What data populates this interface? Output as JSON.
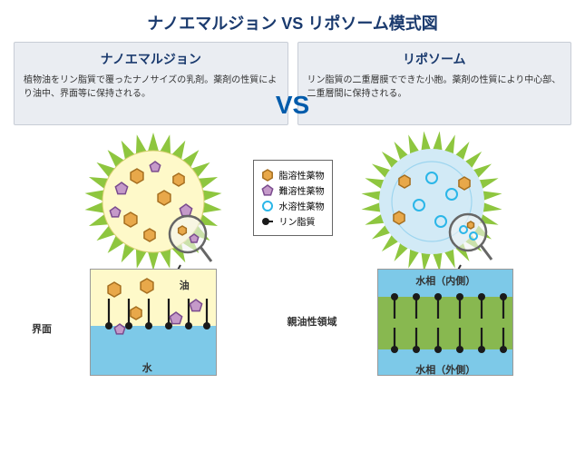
{
  "title": "ナノエマルジョン VS リポソーム模式図",
  "vs_text": "VS",
  "left": {
    "title": "ナノエマルジョン",
    "desc": "植物油をリン脂質で覆ったナノサイズの乳剤。薬剤の性質により油中、界面等に保持される。"
  },
  "right": {
    "title": "リポソーム",
    "desc": "リン脂質の二重層膜でできた小胞。薬剤の性質により中心部、二重層間に保持される。"
  },
  "legend": {
    "fat": "脂溶性薬物",
    "hard": "難溶性薬物",
    "water": "水溶性薬物",
    "lipid": "リン脂質"
  },
  "colors": {
    "spike": "#8ec63f",
    "emul_fill": "#fef9c9",
    "lipo_fill": "#d2eaf6",
    "hex_fill": "#e8a84a",
    "hex_stroke": "#a56e1f",
    "pent_fill": "#c59ac9",
    "pent_stroke": "#7a4b8e",
    "circ_stroke": "#2bb6e8",
    "lipid_head": "#1a1a1a",
    "oil": "#fef9c9",
    "water_phase": "#7dc9e8",
    "bilayer": "#88b850",
    "magnifier": "#666"
  },
  "detail_left": {
    "oil": "油",
    "water": "水",
    "interface": "界面"
  },
  "detail_right": {
    "inner": "水相（内側）",
    "outer": "水相（外側）",
    "lipo_region": "親油性領域"
  }
}
